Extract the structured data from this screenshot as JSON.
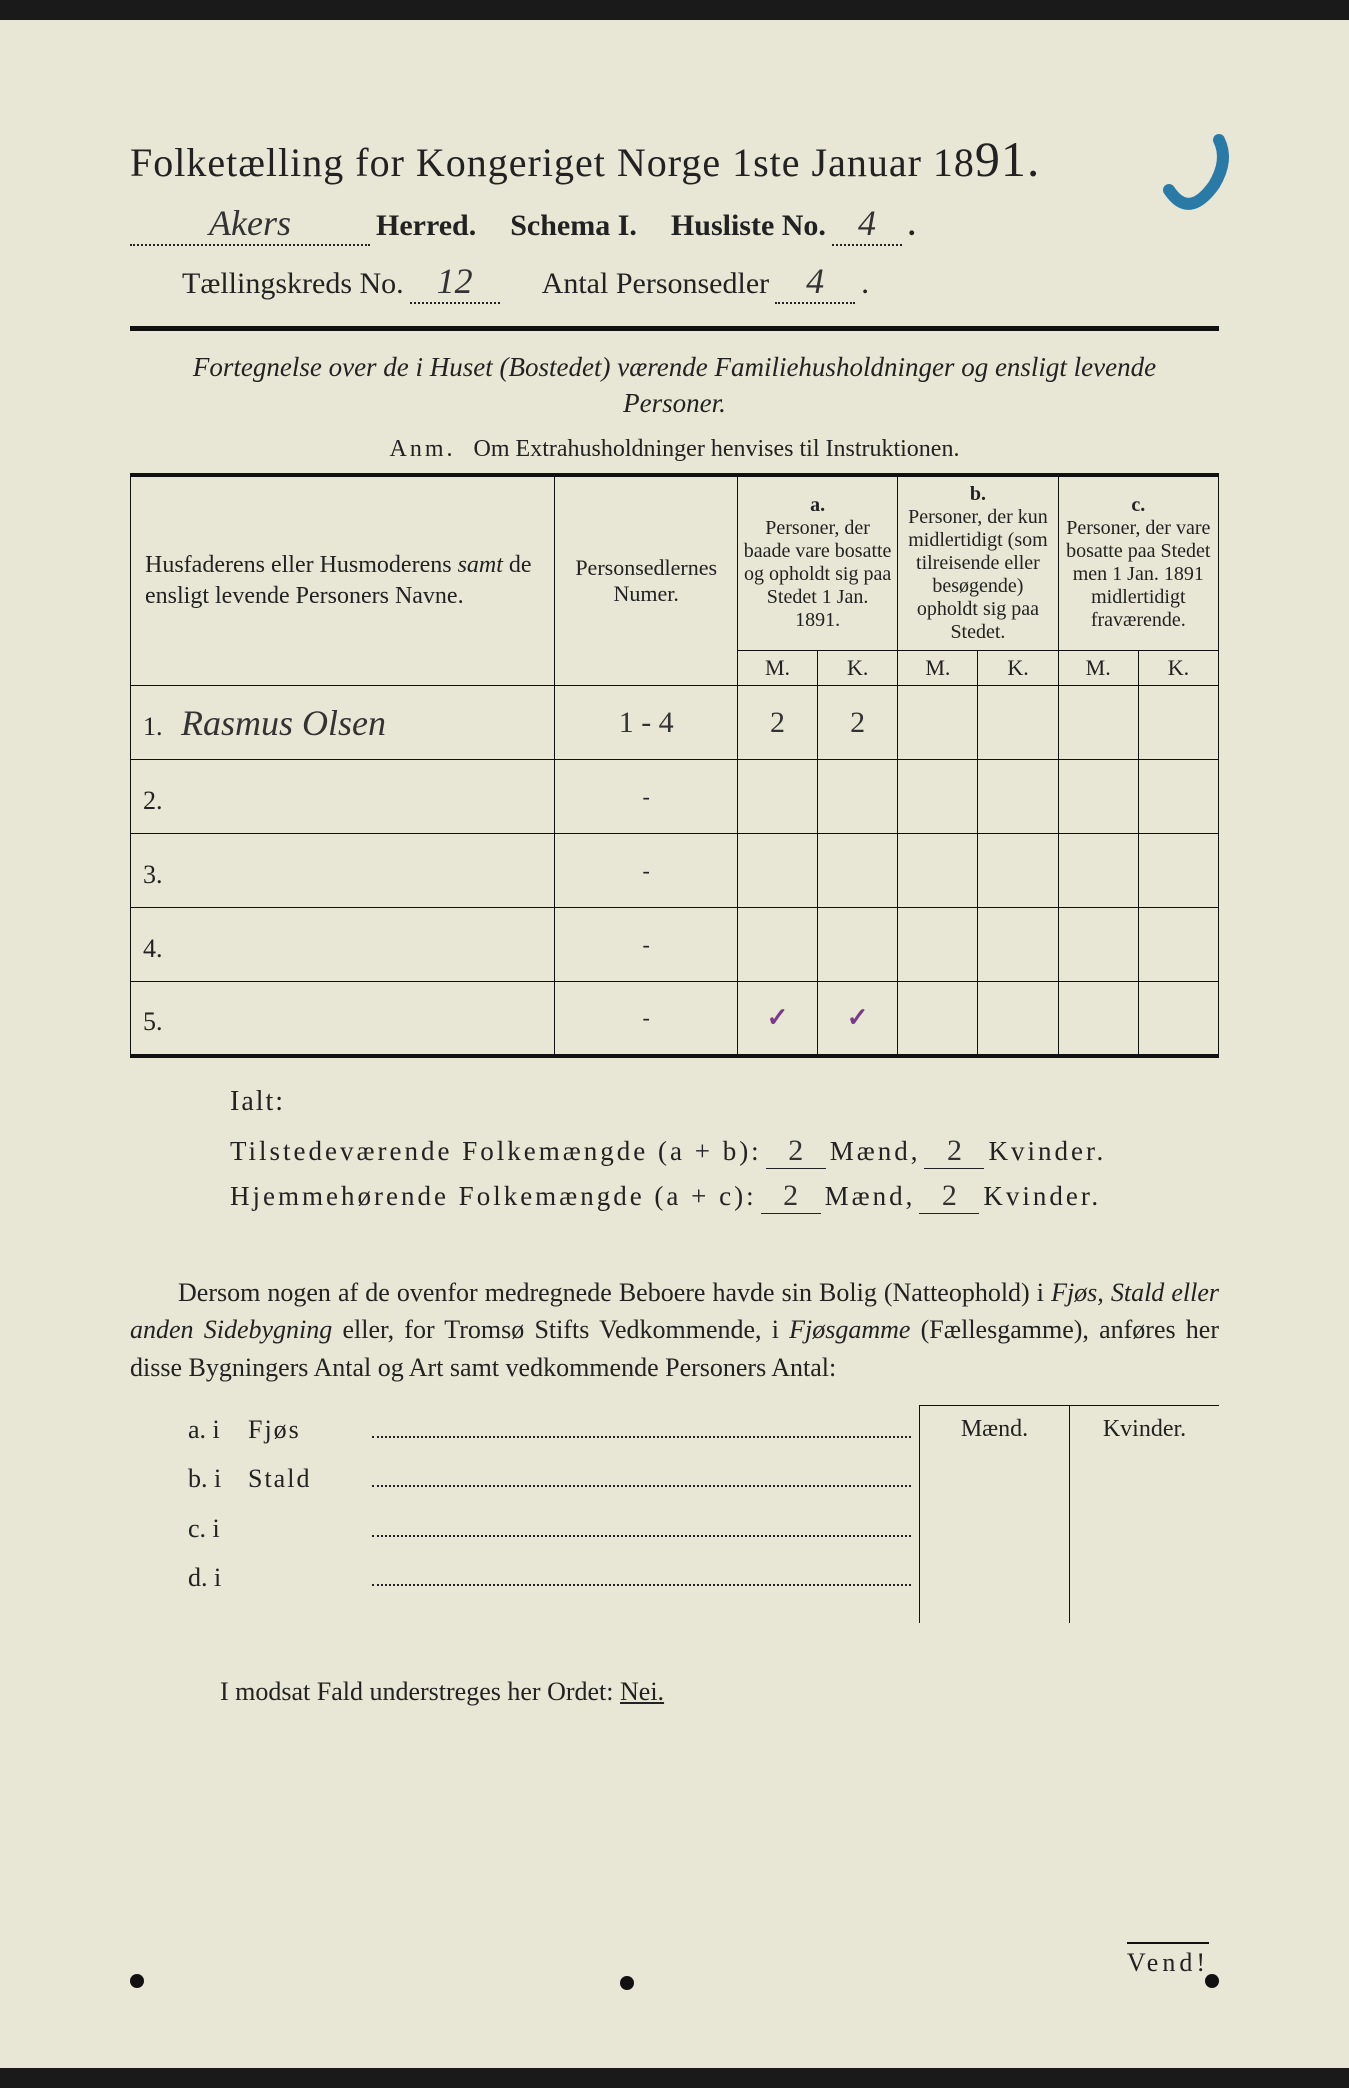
{
  "header": {
    "main_title_prefix": "Folketælling for Kongeriget Norge 1ste Januar ",
    "year_18": "18",
    "year_91": "91.",
    "herred_value": "Akers",
    "herred_label": "Herred.",
    "schema_label": "Schema I.",
    "husliste_label": "Husliste No.",
    "husliste_value": "4",
    "kreds_label": "Tællingskreds No.",
    "kreds_value": "12",
    "antal_label": "Antal Personsedler",
    "antal_value": "4"
  },
  "subtitle": "Fortegnelse over de i Huset (Bostedet) værende Familiehusholdninger og ensligt levende Personer.",
  "anm_prefix": "Anm.",
  "anm_text": "Om Extrahusholdninger henvises til Instruktionen.",
  "table": {
    "col_names_header": "Husfaderens eller Husmoderens samt de ensligt levende Personers Navne.",
    "col_nums_header": "Personsedlernes Numer.",
    "group_a_tag": "a.",
    "group_a_text": "Personer, der baade vare bosatte og opholdt sig paa Stedet 1 Jan. 1891.",
    "group_b_tag": "b.",
    "group_b_text": "Personer, der kun midlertidigt (som tilreisende eller besøgende) opholdt sig paa Stedet.",
    "group_c_tag": "c.",
    "group_c_text": "Personer, der vare bosatte paa Stedet men 1 Jan. 1891 midlertidigt fraværende.",
    "mk_m": "M.",
    "mk_k": "K.",
    "rows": [
      {
        "num": "1.",
        "name": "Rasmus Olsen",
        "pers": "1 - 4",
        "a_m": "2",
        "a_k": "2",
        "b_m": "",
        "b_k": "",
        "c_m": "",
        "c_k": ""
      },
      {
        "num": "2.",
        "name": "",
        "pers": "-",
        "a_m": "",
        "a_k": "",
        "b_m": "",
        "b_k": "",
        "c_m": "",
        "c_k": ""
      },
      {
        "num": "3.",
        "name": "",
        "pers": "-",
        "a_m": "",
        "a_k": "",
        "b_m": "",
        "b_k": "",
        "c_m": "",
        "c_k": ""
      },
      {
        "num": "4.",
        "name": "",
        "pers": "-",
        "a_m": "",
        "a_k": "",
        "b_m": "",
        "b_k": "",
        "c_m": "",
        "c_k": ""
      },
      {
        "num": "5.",
        "name": "",
        "pers": "-",
        "a_m": "✓",
        "a_k": "✓",
        "b_m": "",
        "b_k": "",
        "c_m": "",
        "c_k": ""
      }
    ]
  },
  "totals": {
    "ialt": "Ialt:",
    "line1_label": "Tilstedeværende Folkemængde (a + b):",
    "line2_label": "Hjemmehørende Folkemængde (a + c):",
    "maend": "Mænd,",
    "kvinder": "Kvinder.",
    "v1_m": "2",
    "v1_k": "2",
    "v2_m": "2",
    "v2_k": "2"
  },
  "para": "Dersom nogen af de ovenfor medregnede Beboere havde sin Bolig (Natteophold) i Fjøs, Stald eller anden Sidebygning eller, for Tromsø Stifts Vedkommende, i Fjøsgamme (Fællesgamme), anføres her disse Bygningers Antal og Art samt vedkommende Personers Antal:",
  "sidebox": {
    "maend": "Mænd.",
    "kvinder": "Kvinder.",
    "rows": [
      {
        "tag": "a.  i",
        "label": "Fjøs"
      },
      {
        "tag": "b.  i",
        "label": "Stald"
      },
      {
        "tag": "c.  i",
        "label": ""
      },
      {
        "tag": "d.  i",
        "label": ""
      }
    ]
  },
  "nei_line_prefix": "I modsat Fald understreges her Ordet: ",
  "nei_word": "Nei.",
  "vend": "Vend!",
  "colors": {
    "paper": "#e8e6d4",
    "ink": "#222222",
    "blue_pencil": "#2a7aa8",
    "purple_check": "#7a3a8a"
  }
}
